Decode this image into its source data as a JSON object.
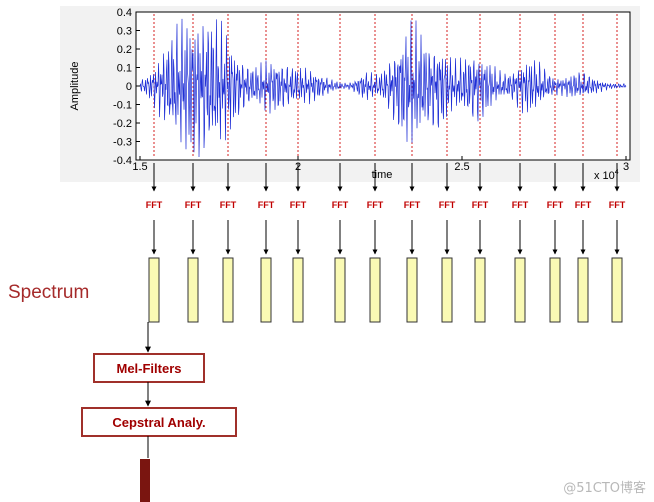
{
  "waveform": {
    "ylabel": "Amplitude",
    "xlabel": "time",
    "exponent_label": "x 10",
    "exponent_power": "4",
    "y_ticks": [
      "0.4",
      "0.3",
      "0.2",
      "0.1",
      "0",
      "-0.1",
      "-0.2",
      "-0.3",
      "-0.4"
    ],
    "x_ticks": [
      "1.5",
      "2",
      "2.5",
      "3"
    ],
    "wave_color": "#1f2fd6",
    "frame_line_color": "#d42020"
  },
  "fft_label": "FFT",
  "fft_count": 14,
  "spectrum_label": "Spectrum",
  "spectrum_bar_fill": "#fafab4",
  "mel_filters_label": "Mel-Filters",
  "cepstral_label": "Cepstral Analy.",
  "box_border_color": "#a0302a",
  "output_bar_color": "#7a1510",
  "watermark": "@51CTO博客"
}
